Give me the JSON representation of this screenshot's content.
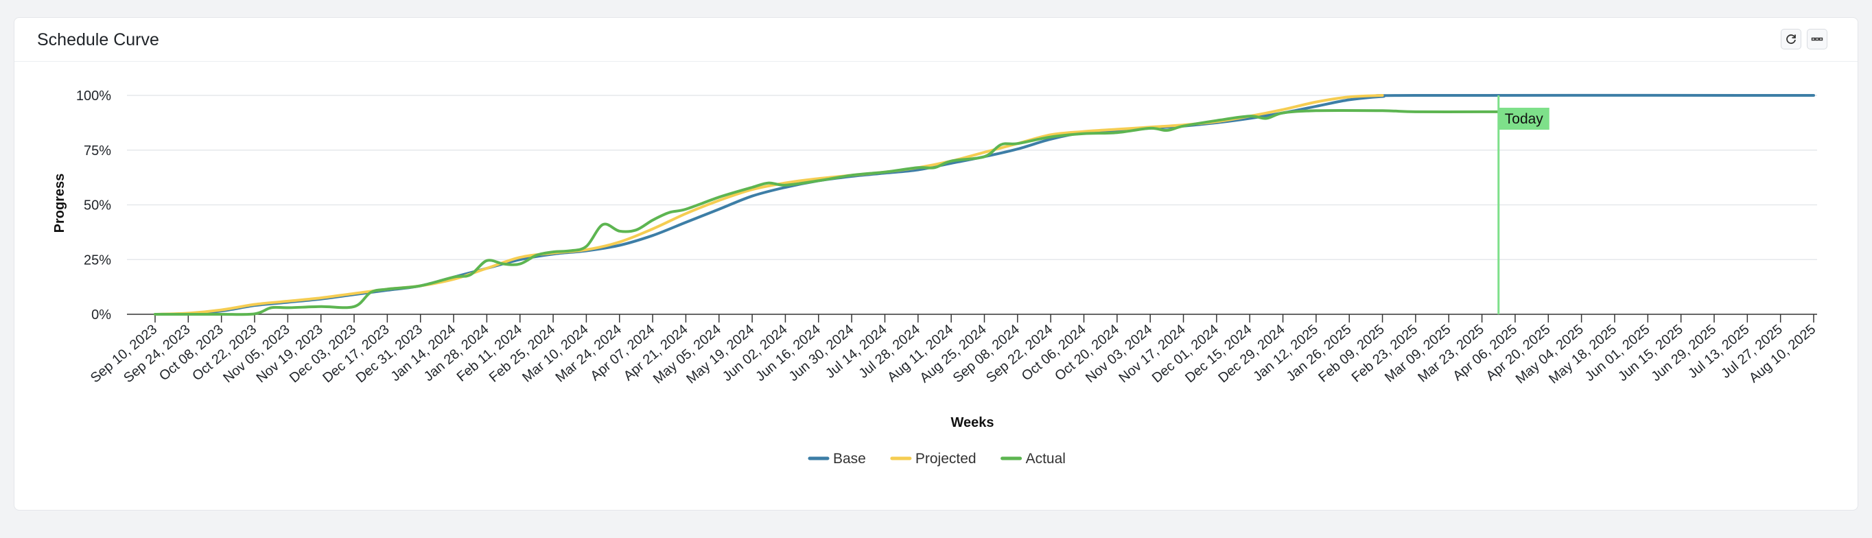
{
  "card": {
    "title": "Schedule Curve",
    "refresh_icon": "refresh-icon",
    "menu_icon": "more-icon"
  },
  "chart_data": {
    "type": "line",
    "xlabel": "Weeks",
    "ylabel": "Progress",
    "x_ticks": [
      "Sep 10, 2023",
      "Sep 24, 2023",
      "Oct 08, 2023",
      "Oct 22, 2023",
      "Nov 05, 2023",
      "Nov 19, 2023",
      "Dec 03, 2023",
      "Dec 17, 2023",
      "Dec 31, 2023",
      "Jan 14, 2024",
      "Jan 28, 2024",
      "Feb 11, 2024",
      "Feb 25, 2024",
      "Mar 10, 2024",
      "Mar 24, 2024",
      "Apr 07, 2024",
      "Apr 21, 2024",
      "May 05, 2024",
      "May 19, 2024",
      "Jun 02, 2024",
      "Jun 16, 2024",
      "Jun 30, 2024",
      "Jul 14, 2024",
      "Jul 28, 2024",
      "Aug 11, 2024",
      "Aug 25, 2024",
      "Sep 08, 2024",
      "Sep 22, 2024",
      "Oct 06, 2024",
      "Oct 20, 2024",
      "Nov 03, 2024",
      "Nov 17, 2024",
      "Dec 01, 2024",
      "Dec 15, 2024",
      "Dec 29, 2024",
      "Jan 12, 2025",
      "Jan 26, 2025",
      "Feb 09, 2025",
      "Feb 23, 2025",
      "Mar 09, 2025",
      "Mar 23, 2025",
      "Apr 06, 2025",
      "Apr 20, 2025",
      "May 04, 2025",
      "May 18, 2025",
      "Jun 01, 2025",
      "Jun 15, 2025",
      "Jun 29, 2025",
      "Jul 13, 2025",
      "Jul 27, 2025",
      "Aug 10, 2025"
    ],
    "y_ticks": [
      "0%",
      "25%",
      "50%",
      "75%",
      "100%"
    ],
    "ylim": [
      0,
      100
    ],
    "grid": true,
    "legend": "bottom-center",
    "series": [
      {
        "name": "Base",
        "color": "#3d7ea6",
        "points": [
          [
            "Sep 10, 2023",
            0
          ],
          [
            "Sep 24, 2023",
            0.3
          ],
          [
            "Oct 08, 2023",
            1.5
          ],
          [
            "Oct 22, 2023",
            4
          ],
          [
            "Nov 05, 2023",
            5.5
          ],
          [
            "Nov 19, 2023",
            7
          ],
          [
            "Dec 03, 2023",
            9
          ],
          [
            "Dec 17, 2023",
            11
          ],
          [
            "Dec 31, 2023",
            13
          ],
          [
            "Jan 14, 2024",
            17
          ],
          [
            "Jan 28, 2024",
            21
          ],
          [
            "Feb 11, 2024",
            25
          ],
          [
            "Feb 25, 2024",
            27.5
          ],
          [
            "Mar 10, 2024",
            29
          ],
          [
            "Mar 24, 2024",
            31.5
          ],
          [
            "Apr 07, 2024",
            36
          ],
          [
            "Apr 21, 2024",
            42
          ],
          [
            "May 05, 2024",
            48
          ],
          [
            "May 19, 2024",
            54
          ],
          [
            "Jun 02, 2024",
            58
          ],
          [
            "Jun 16, 2024",
            61
          ],
          [
            "Jun 30, 2024",
            63
          ],
          [
            "Jul 14, 2024",
            64.5
          ],
          [
            "Jul 28, 2024",
            66
          ],
          [
            "Aug 11, 2024",
            69
          ],
          [
            "Aug 25, 2024",
            72
          ],
          [
            "Sep 08, 2024",
            75.5
          ],
          [
            "Sep 22, 2024",
            80
          ],
          [
            "Oct 06, 2024",
            83
          ],
          [
            "Oct 20, 2024",
            84
          ],
          [
            "Nov 03, 2024",
            85
          ],
          [
            "Nov 17, 2024",
            86
          ],
          [
            "Dec 01, 2024",
            87.5
          ],
          [
            "Dec 15, 2024",
            89.5
          ],
          [
            "Dec 29, 2024",
            92
          ],
          [
            "Jan 12, 2025",
            95
          ],
          [
            "Jan 26, 2025",
            98
          ],
          [
            "Feb 09, 2025",
            99.5
          ],
          [
            "Feb 23, 2025",
            100
          ],
          [
            "Aug 10, 2025",
            100
          ]
        ]
      },
      {
        "name": "Projected",
        "color": "#f5cd52",
        "points": [
          [
            "Sep 10, 2023",
            0
          ],
          [
            "Sep 24, 2023",
            0.5
          ],
          [
            "Oct 08, 2023",
            2
          ],
          [
            "Oct 22, 2023",
            4.5
          ],
          [
            "Nov 05, 2023",
            6
          ],
          [
            "Nov 19, 2023",
            7.5
          ],
          [
            "Dec 03, 2023",
            9.5
          ],
          [
            "Dec 17, 2023",
            11.5
          ],
          [
            "Dec 31, 2023",
            13
          ],
          [
            "Jan 14, 2024",
            16
          ],
          [
            "Jan 28, 2024",
            21
          ],
          [
            "Feb 11, 2024",
            26
          ],
          [
            "Feb 25, 2024",
            28
          ],
          [
            "Mar 10, 2024",
            29.5
          ],
          [
            "Mar 24, 2024",
            33
          ],
          [
            "Apr 07, 2024",
            39
          ],
          [
            "Apr 21, 2024",
            46
          ],
          [
            "May 05, 2024",
            52
          ],
          [
            "May 19, 2024",
            57
          ],
          [
            "Jun 02, 2024",
            60
          ],
          [
            "Jun 16, 2024",
            62
          ],
          [
            "Jun 30, 2024",
            63.5
          ],
          [
            "Jul 14, 2024",
            65
          ],
          [
            "Jul 28, 2024",
            67
          ],
          [
            "Aug 11, 2024",
            70
          ],
          [
            "Aug 25, 2024",
            74
          ],
          [
            "Sep 08, 2024",
            78
          ],
          [
            "Sep 22, 2024",
            82
          ],
          [
            "Oct 06, 2024",
            83.5
          ],
          [
            "Oct 20, 2024",
            84.5
          ],
          [
            "Nov 03, 2024",
            85.5
          ],
          [
            "Nov 17, 2024",
            86.5
          ],
          [
            "Dec 01, 2024",
            88
          ],
          [
            "Dec 15, 2024",
            90.5
          ],
          [
            "Dec 29, 2024",
            93.5
          ],
          [
            "Jan 12, 2025",
            97
          ],
          [
            "Jan 26, 2025",
            99.3
          ],
          [
            "Feb 09, 2025",
            100
          ]
        ]
      },
      {
        "name": "Actual",
        "color": "#5db551",
        "points": [
          [
            "Sep 10, 2023",
            0
          ],
          [
            "Sep 24, 2023",
            0
          ],
          [
            "Oct 08, 2023",
            0
          ],
          [
            "Oct 22, 2023",
            0.2
          ],
          [
            "Oct 29, 2023",
            3
          ],
          [
            "Nov 05, 2023",
            3
          ],
          [
            "Nov 19, 2023",
            3.5
          ],
          [
            "Dec 03, 2023",
            3.5
          ],
          [
            "Dec 10, 2023",
            10
          ],
          [
            "Dec 17, 2023",
            11.5
          ],
          [
            "Dec 31, 2023",
            13
          ],
          [
            "Jan 14, 2024",
            17
          ],
          [
            "Jan 21, 2024",
            18
          ],
          [
            "Jan 28, 2024",
            24.5
          ],
          [
            "Feb 04, 2024",
            23
          ],
          [
            "Feb 11, 2024",
            23
          ],
          [
            "Feb 18, 2024",
            27
          ],
          [
            "Feb 25, 2024",
            28.5
          ],
          [
            "Mar 03, 2024",
            29
          ],
          [
            "Mar 10, 2024",
            31
          ],
          [
            "Mar 17, 2024",
            41
          ],
          [
            "Mar 24, 2024",
            38
          ],
          [
            "Mar 31, 2024",
            38.5
          ],
          [
            "Apr 07, 2024",
            43
          ],
          [
            "Apr 14, 2024",
            46.5
          ],
          [
            "Apr 21, 2024",
            48
          ],
          [
            "May 05, 2024",
            53.5
          ],
          [
            "May 19, 2024",
            58
          ],
          [
            "May 26, 2024",
            60
          ],
          [
            "Jun 02, 2024",
            59
          ],
          [
            "Jun 16, 2024",
            61
          ],
          [
            "Jun 30, 2024",
            63.5
          ],
          [
            "Jul 14, 2024",
            65
          ],
          [
            "Jul 28, 2024",
            67
          ],
          [
            "Aug 04, 2024",
            67
          ],
          [
            "Aug 11, 2024",
            70
          ],
          [
            "Aug 25, 2024",
            72
          ],
          [
            "Sep 01, 2024",
            77.5
          ],
          [
            "Sep 08, 2024",
            78
          ],
          [
            "Sep 22, 2024",
            81
          ],
          [
            "Oct 06, 2024",
            82.5
          ],
          [
            "Oct 20, 2024",
            83
          ],
          [
            "Nov 03, 2024",
            85
          ],
          [
            "Nov 10, 2024",
            84
          ],
          [
            "Nov 17, 2024",
            86
          ],
          [
            "Dec 01, 2024",
            88.5
          ],
          [
            "Dec 15, 2024",
            90.5
          ],
          [
            "Dec 22, 2024",
            89.5
          ],
          [
            "Dec 29, 2024",
            92
          ],
          [
            "Jan 12, 2025",
            93
          ],
          [
            "Feb 09, 2025",
            93
          ],
          [
            "Feb 23, 2025",
            92.5
          ],
          [
            "Mar 23, 2025",
            92.5
          ],
          [
            "Mar 30, 2025",
            92.5
          ]
        ]
      }
    ],
    "annotations": [
      {
        "label": "Today",
        "x": "Mar 30, 2025",
        "color": "#7ee08a"
      }
    ]
  }
}
